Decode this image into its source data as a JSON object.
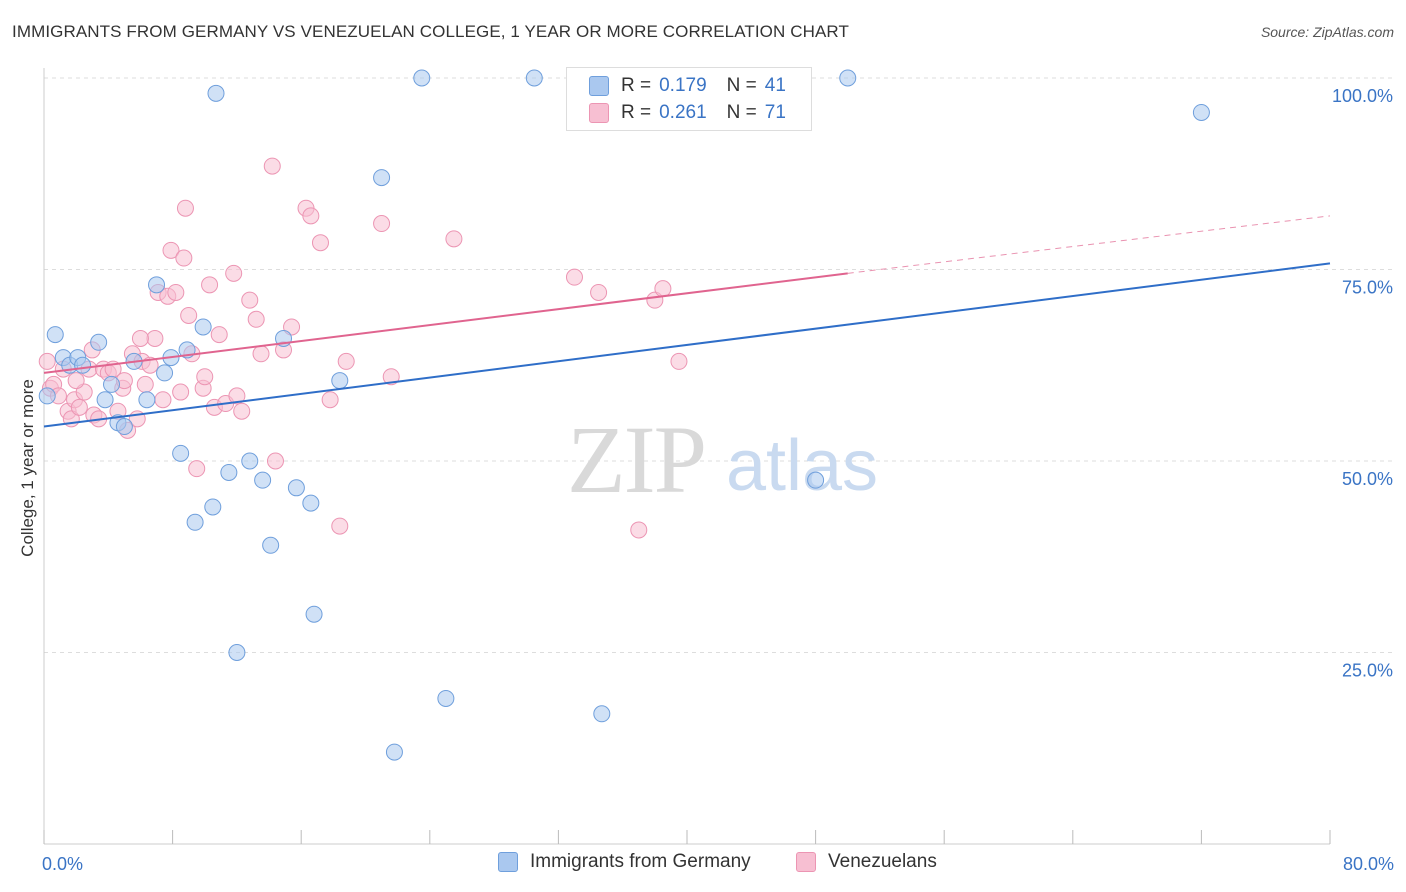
{
  "title": "IMMIGRANTS FROM GERMANY VS VENEZUELAN COLLEGE, 1 YEAR OR MORE CORRELATION CHART",
  "source": "Source: ZipAtlas.com",
  "watermark": {
    "zip": "ZIP",
    "atlas": "atlas"
  },
  "colors": {
    "germany_fill": "#aac8ef",
    "germany_stroke": "#6f9fdc",
    "germany_line": "#2f6ec8",
    "venezuela_fill": "#f7bfd2",
    "venezuela_stroke": "#ec95b3",
    "venezuela_line": "#e0648f",
    "tick_label": "#3a74c5",
    "grid": "#dddddd"
  },
  "legend_top": [
    {
      "r_label": "R =",
      "r": "0.179",
      "n_label": "N =",
      "n": "41"
    },
    {
      "r_label": "R =",
      "r": "0.261",
      "n_label": "N =",
      "n": "71"
    }
  ],
  "chart_data": {
    "type": "scatter",
    "title": "IMMIGRANTS FROM GERMANY VS VENEZUELAN COLLEGE, 1 YEAR OR MORE CORRELATION CHART",
    "xlabel": "",
    "ylabel": "College, 1 year or more",
    "xlim": [
      0,
      80
    ],
    "ylim": [
      0,
      105
    ],
    "x_tick_labels": [
      "0.0%",
      "80.0%"
    ],
    "y_ticks": [
      25,
      50,
      75,
      100
    ],
    "y_tick_labels": [
      "25.0%",
      "50.0%",
      "75.0%",
      "100.0%"
    ],
    "grid": true,
    "legend_position": "bottom-center",
    "series": [
      {
        "name": "Immigrants from Germany",
        "r": 0.179,
        "n": 41,
        "trend": {
          "x": [
            0,
            80
          ],
          "y": [
            54.5,
            75.8
          ]
        },
        "points": [
          [
            0.2,
            58.5
          ],
          [
            0.7,
            66.5
          ],
          [
            1.2,
            63.5
          ],
          [
            1.6,
            62.5
          ],
          [
            2.1,
            63.5
          ],
          [
            2.4,
            62.5
          ],
          [
            3.4,
            65.5
          ],
          [
            3.8,
            58.0
          ],
          [
            4.2,
            60.0
          ],
          [
            4.6,
            55.0
          ],
          [
            5.0,
            54.5
          ],
          [
            5.6,
            63.0
          ],
          [
            6.4,
            58.0
          ],
          [
            7.0,
            73.0
          ],
          [
            7.5,
            61.5
          ],
          [
            7.9,
            63.5
          ],
          [
            8.5,
            51.0
          ],
          [
            8.9,
            64.5
          ],
          [
            9.4,
            42.0
          ],
          [
            9.9,
            67.5
          ],
          [
            10.5,
            44.0
          ],
          [
            10.7,
            98.0
          ],
          [
            11.5,
            48.5
          ],
          [
            12.0,
            25.0
          ],
          [
            12.8,
            50.0
          ],
          [
            13.6,
            47.5
          ],
          [
            14.1,
            39.0
          ],
          [
            14.9,
            66.0
          ],
          [
            15.7,
            46.5
          ],
          [
            16.6,
            44.5
          ],
          [
            16.8,
            30.0
          ],
          [
            18.4,
            60.5
          ],
          [
            21.0,
            87.0
          ],
          [
            21.8,
            12.0
          ],
          [
            23.5,
            100.0
          ],
          [
            25.0,
            19.0
          ],
          [
            30.5,
            100.0
          ],
          [
            34.7,
            17.0
          ],
          [
            48.0,
            47.5
          ],
          [
            50.0,
            100.0
          ],
          [
            72.0,
            95.5
          ]
        ]
      },
      {
        "name": "Venezuelans",
        "r": 0.261,
        "n": 71,
        "trend_solid": {
          "x": [
            0,
            50
          ],
          "y": [
            61.5,
            74.5
          ]
        },
        "trend_dashed": {
          "x": [
            50,
            80
          ],
          "y": [
            74.5,
            82.0
          ]
        },
        "points": [
          [
            0.2,
            63.0
          ],
          [
            0.4,
            59.5
          ],
          [
            0.6,
            60.0
          ],
          [
            0.9,
            58.5
          ],
          [
            1.2,
            62.0
          ],
          [
            1.5,
            56.5
          ],
          [
            1.7,
            55.5
          ],
          [
            1.9,
            58.0
          ],
          [
            2.2,
            57.0
          ],
          [
            2.5,
            59.0
          ],
          [
            2.8,
            62.0
          ],
          [
            3.1,
            56.0
          ],
          [
            3.4,
            55.5
          ],
          [
            3.7,
            62.0
          ],
          [
            4.0,
            61.5
          ],
          [
            4.3,
            62.0
          ],
          [
            4.6,
            56.5
          ],
          [
            4.9,
            59.5
          ],
          [
            5.2,
            54.0
          ],
          [
            5.5,
            64.0
          ],
          [
            5.8,
            55.5
          ],
          [
            6.1,
            63.0
          ],
          [
            6.3,
            60.0
          ],
          [
            6.6,
            62.5
          ],
          [
            6.9,
            66.0
          ],
          [
            7.1,
            72.0
          ],
          [
            7.4,
            58.0
          ],
          [
            7.7,
            71.5
          ],
          [
            7.9,
            77.5
          ],
          [
            8.2,
            72.0
          ],
          [
            8.5,
            59.0
          ],
          [
            8.7,
            76.5
          ],
          [
            8.8,
            83.0
          ],
          [
            9.0,
            69.0
          ],
          [
            9.2,
            64.0
          ],
          [
            9.5,
            49.0
          ],
          [
            9.9,
            59.5
          ],
          [
            10.3,
            73.0
          ],
          [
            10.6,
            57.0
          ],
          [
            10.9,
            66.5
          ],
          [
            11.3,
            57.5
          ],
          [
            11.8,
            74.5
          ],
          [
            12.3,
            56.5
          ],
          [
            12.8,
            71.0
          ],
          [
            13.2,
            68.5
          ],
          [
            13.5,
            64.0
          ],
          [
            14.2,
            88.5
          ],
          [
            14.4,
            50.0
          ],
          [
            14.9,
            64.5
          ],
          [
            15.4,
            67.5
          ],
          [
            16.3,
            83.0
          ],
          [
            16.6,
            82.0
          ],
          [
            17.2,
            78.5
          ],
          [
            17.8,
            58.0
          ],
          [
            18.4,
            41.5
          ],
          [
            18.8,
            63.0
          ],
          [
            21.0,
            81.0
          ],
          [
            21.6,
            61.0
          ],
          [
            25.5,
            79.0
          ],
          [
            33.0,
            74.0
          ],
          [
            34.5,
            72.0
          ],
          [
            37.0,
            41.0
          ],
          [
            38.0,
            71.0
          ],
          [
            38.5,
            72.5
          ],
          [
            39.5,
            63.0
          ],
          [
            12.0,
            58.5
          ],
          [
            5.0,
            60.5
          ],
          [
            3.0,
            64.5
          ],
          [
            2.0,
            60.5
          ],
          [
            6.0,
            66.0
          ],
          [
            10.0,
            61.0
          ]
        ]
      }
    ]
  },
  "bottom_legend": [
    {
      "label": "Immigrants from Germany"
    },
    {
      "label": "Venezuelans"
    }
  ]
}
